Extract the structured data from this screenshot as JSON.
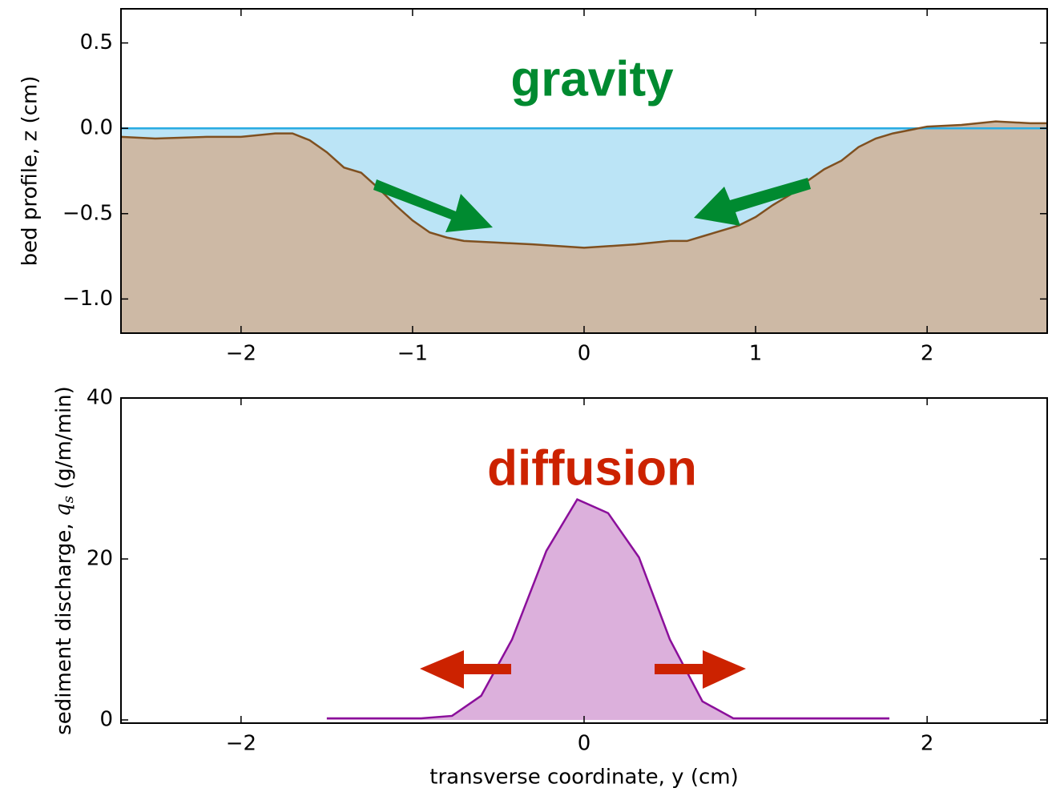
{
  "chart_data": [
    {
      "type": "area",
      "annotation": "gravity",
      "annotation_color": "#008a30",
      "y_label": "bed profile, z (cm)",
      "x": [
        -2.7,
        -2.5,
        -2.2,
        -2.0,
        -1.8,
        -1.7,
        -1.6,
        -1.5,
        -1.4,
        -1.3,
        -1.2,
        -1.1,
        -1.0,
        -0.9,
        -0.8,
        -0.7,
        -0.5,
        -0.3,
        0.0,
        0.3,
        0.5,
        0.6,
        0.7,
        0.9,
        1.0,
        1.1,
        1.2,
        1.3,
        1.4,
        1.5,
        1.6,
        1.7,
        1.8,
        1.9,
        2.0,
        2.2,
        2.4,
        2.6,
        2.7
      ],
      "values": [
        -0.05,
        -0.06,
        -0.05,
        -0.05,
        -0.03,
        -0.03,
        -0.07,
        -0.14,
        -0.23,
        -0.26,
        -0.35,
        -0.45,
        -0.54,
        -0.61,
        -0.64,
        -0.66,
        -0.67,
        -0.68,
        -0.7,
        -0.68,
        -0.66,
        -0.66,
        -0.63,
        -0.57,
        -0.52,
        -0.45,
        -0.39,
        -0.31,
        -0.24,
        -0.19,
        -0.11,
        -0.06,
        -0.03,
        -0.01,
        0.01,
        0.02,
        0.04,
        0.03,
        0.03
      ],
      "line_color": "#7f5020",
      "fill_color": "#cdb9a5",
      "water_level": 0,
      "water_color": "#bbe4f6",
      "water_line_color": "#29abe2",
      "xlim": [
        -2.7,
        2.7
      ],
      "ylim": [
        -1.2,
        0.7
      ],
      "xticks": [
        {
          "value": -2,
          "label": "−2"
        },
        {
          "value": -1,
          "label": "−1"
        },
        0,
        1,
        2
      ],
      "yticks": [
        {
          "value": 0.5,
          "label": "0.5"
        },
        {
          "value": 0,
          "label": "0.0"
        },
        {
          "value": -0.5,
          "label": "−0.5"
        },
        {
          "value": -1,
          "label": "−1.0"
        }
      ]
    },
    {
      "type": "area",
      "annotation": "diffusion",
      "annotation_color": "#cc2200",
      "x_label": "transverse coordinate, y (cm)",
      "y_label_parts": [
        "sediment discharge, ",
        "q",
        "s",
        " (g/m/min)"
      ],
      "x": [
        -1.5,
        -0.95,
        -0.77,
        -0.6,
        -0.42,
        -0.22,
        -0.04,
        0.14,
        0.32,
        0.5,
        0.69,
        0.87,
        1.78
      ],
      "values": [
        0.2,
        0.2,
        0.5,
        3,
        10,
        21,
        27.4,
        25.7,
        20.2,
        10,
        2.3,
        0.2,
        0.2
      ],
      "line_color": "#8b0f9b",
      "fill_color": "#dcb0dc",
      "xlim": [
        -2.7,
        2.7
      ],
      "ylim": [
        -0.4,
        40
      ],
      "xticks": [
        {
          "value": -2,
          "label": "−2"
        },
        0,
        2
      ],
      "yticks": [
        0,
        20,
        40
      ]
    }
  ]
}
